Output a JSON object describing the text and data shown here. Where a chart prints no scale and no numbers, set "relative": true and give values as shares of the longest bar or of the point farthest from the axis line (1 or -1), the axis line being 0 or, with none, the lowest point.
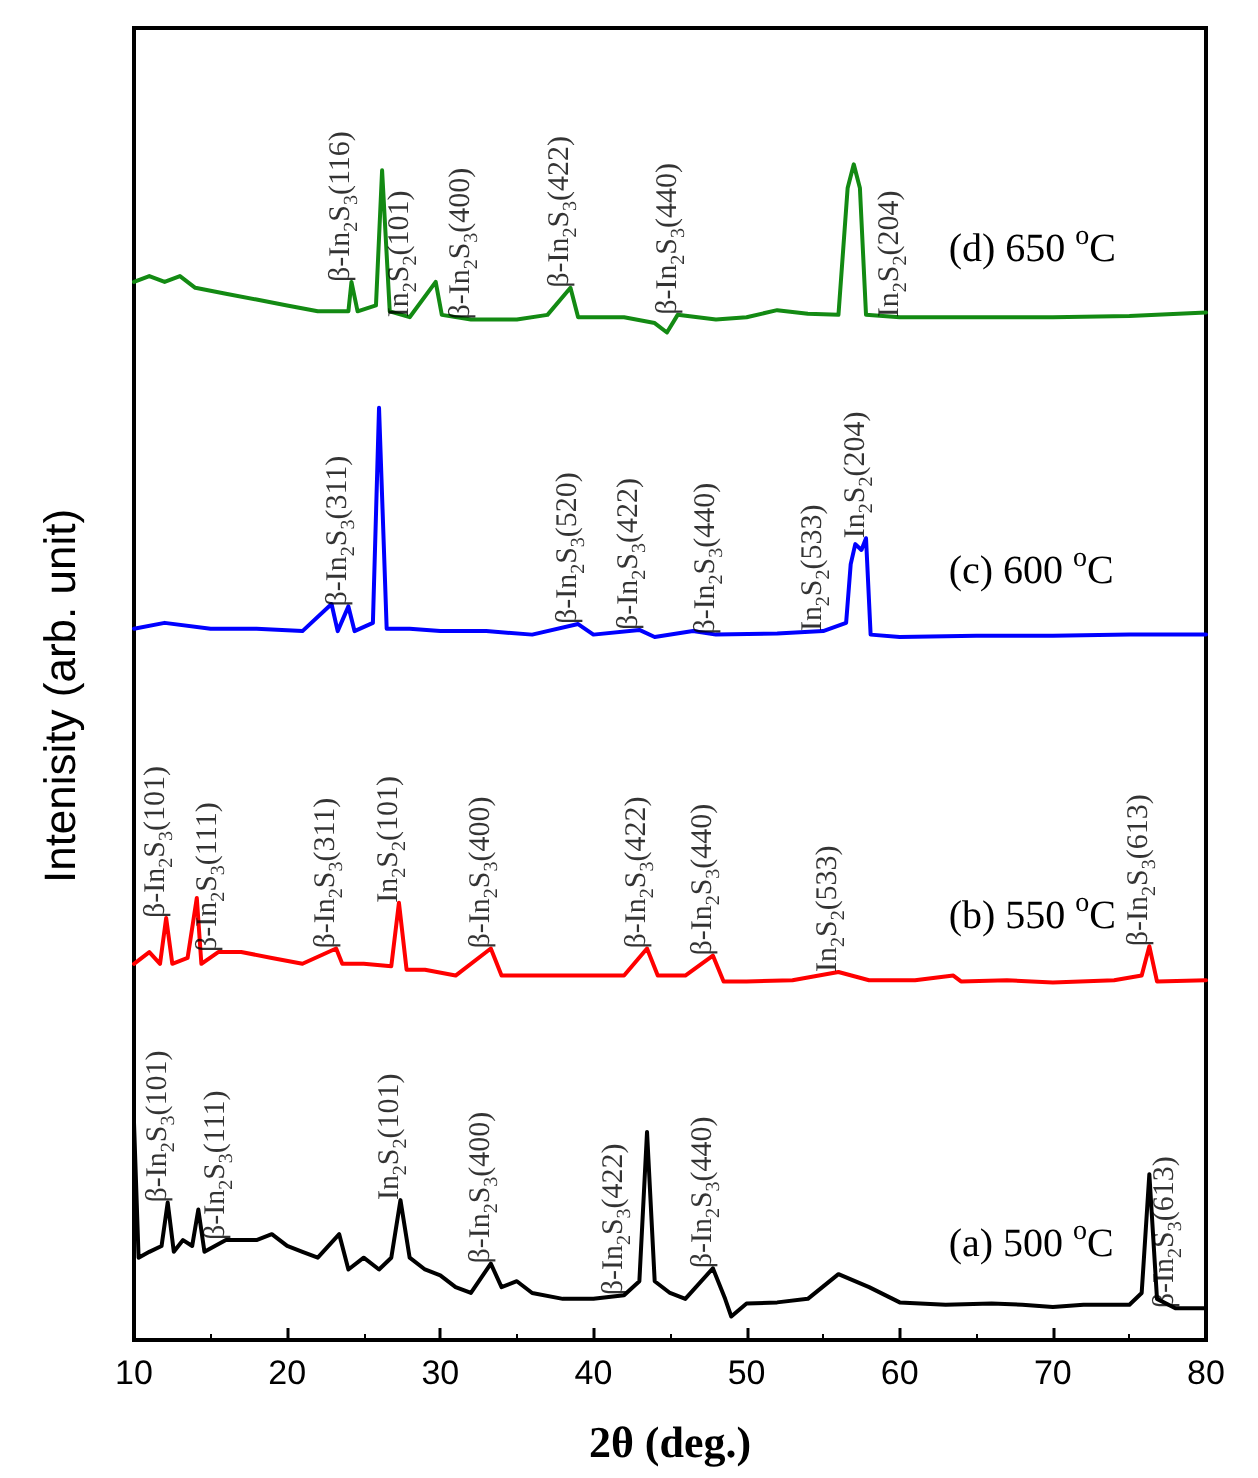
{
  "chart_data": {
    "type": "line",
    "xlabel": "2θ (deg.)",
    "ylabel": "Intenisity (arb. unit)",
    "xlim": [
      10,
      80
    ],
    "xticks": [
      10,
      20,
      30,
      40,
      50,
      60,
      70,
      80
    ],
    "relative": true,
    "marker": "none",
    "line_style": "solid",
    "series": [
      {
        "name": "(a) 500 $^{o}$C",
        "color": "#000000",
        "x": [
          10,
          10.3,
          11,
          11.8,
          12.2,
          12.6,
          13.2,
          13.8,
          14.2,
          14.6,
          16,
          18,
          19,
          20,
          21,
          22,
          23.4,
          24,
          25,
          26,
          26.8,
          27.4,
          28,
          29,
          30,
          31,
          32,
          33.3,
          34,
          35,
          36,
          38,
          40,
          42,
          43,
          43.5,
          44,
          45,
          46,
          47.8,
          48.6,
          49,
          50,
          52,
          54,
          56,
          58,
          60,
          63,
          66,
          68,
          70,
          72,
          75,
          75.8,
          76.3,
          76.8,
          78,
          80
        ],
        "values": [
          0.185,
          0.07,
          0.075,
          0.08,
          0.117,
          0.075,
          0.085,
          0.08,
          0.111,
          0.075,
          0.085,
          0.085,
          0.09,
          0.08,
          0.075,
          0.07,
          0.09,
          0.06,
          0.07,
          0.06,
          0.07,
          0.119,
          0.07,
          0.06,
          0.055,
          0.045,
          0.04,
          0.065,
          0.045,
          0.05,
          0.04,
          0.035,
          0.035,
          0.038,
          0.05,
          0.177,
          0.05,
          0.04,
          0.035,
          0.061,
          0.035,
          0.02,
          0.031,
          0.032,
          0.035,
          0.056,
          0.045,
          0.032,
          0.03,
          0.031,
          0.03,
          0.028,
          0.03,
          0.03,
          0.04,
          0.141,
          0.035,
          0.027,
          0.027
        ]
      },
      {
        "name": "(b) 550 $^{o}$C",
        "color": "#ff0000",
        "x": [
          10,
          11,
          11.7,
          12.1,
          12.5,
          13.5,
          14.1,
          14.4,
          15.5,
          17,
          19,
          21,
          23.2,
          23.6,
          25,
          26.8,
          27.3,
          27.8,
          29,
          31,
          33.3,
          34,
          36,
          40,
          42,
          43.5,
          44.2,
          46,
          47.8,
          48.5,
          50,
          53,
          56,
          58,
          61,
          63.5,
          64,
          67,
          70,
          74,
          75.8,
          76.3,
          76.8,
          80
        ],
        "values": [
          0.32,
          0.33,
          0.32,
          0.359,
          0.32,
          0.325,
          0.376,
          0.32,
          0.33,
          0.33,
          0.325,
          0.32,
          0.333,
          0.32,
          0.32,
          0.318,
          0.372,
          0.315,
          0.315,
          0.31,
          0.333,
          0.31,
          0.31,
          0.31,
          0.31,
          0.333,
          0.31,
          0.31,
          0.327,
          0.305,
          0.305,
          0.306,
          0.313,
          0.306,
          0.306,
          0.31,
          0.305,
          0.306,
          0.304,
          0.306,
          0.31,
          0.335,
          0.305,
          0.306
        ]
      },
      {
        "name": "(c) 600 $^{o}$C",
        "color": "#0000ff",
        "x": [
          10,
          12,
          15,
          18,
          21,
          22.9,
          23.3,
          24,
          24.4,
          25.6,
          26,
          26.5,
          28,
          30,
          33,
          36,
          39,
          40,
          43,
          44,
          46.5,
          48,
          52,
          55,
          56.5,
          56.8,
          57.1,
          57.5,
          57.8,
          58.1,
          60,
          65,
          70,
          75,
          80
        ],
        "values": [
          0.605,
          0.61,
          0.605,
          0.605,
          0.603,
          0.626,
          0.603,
          0.624,
          0.603,
          0.61,
          0.793,
          0.605,
          0.605,
          0.603,
          0.603,
          0.6,
          0.609,
          0.6,
          0.604,
          0.598,
          0.603,
          0.6,
          0.601,
          0.603,
          0.61,
          0.66,
          0.677,
          0.672,
          0.682,
          0.6,
          0.598,
          0.599,
          0.599,
          0.6,
          0.6
        ]
      },
      {
        "name": "(d) 650 $^{o}$C",
        "color": "#138a13",
        "x": [
          10,
          11,
          12,
          13,
          14,
          16,
          18,
          20,
          22,
          24,
          24.2,
          24.6,
          25.8,
          26.2,
          26.7,
          28,
          29.7,
          30.1,
          32,
          35,
          37,
          38.5,
          39,
          42,
          44,
          44.8,
          45.5,
          48,
          50,
          52,
          54,
          56,
          56.6,
          57,
          57.4,
          57.8,
          60,
          65,
          70,
          75,
          80
        ],
        "values": [
          0.9,
          0.905,
          0.9,
          0.905,
          0.895,
          0.89,
          0.885,
          0.88,
          0.875,
          0.875,
          0.9,
          0.875,
          0.88,
          0.995,
          0.875,
          0.87,
          0.9,
          0.872,
          0.868,
          0.868,
          0.872,
          0.895,
          0.87,
          0.87,
          0.865,
          0.857,
          0.872,
          0.868,
          0.87,
          0.876,
          0.873,
          0.872,
          0.98,
          1,
          0.98,
          0.872,
          0.87,
          0.87,
          0.87,
          0.871,
          0.874
        ]
      }
    ],
    "annotations": [
      {
        "text": "β-In$_{2}$S$_{3}$(116)",
        "x": 24.2,
        "y": 0.9
      },
      {
        "text": "In$_{2}$S$_{2}$(101)",
        "x": 28,
        "y": 0.87
      },
      {
        "text": "β-In$_{2}$S$_{3}$(400)",
        "x": 32,
        "y": 0.868
      },
      {
        "text": "β-In$_{2}$S$_{3}$(422)",
        "x": 38.5,
        "y": 0.895
      },
      {
        "text": "β-In$_{2}$S$_{3}$(440)",
        "x": 45.5,
        "y": 0.872
      },
      {
        "text": "In$_{2}$S$_{2}$(204)",
        "x": 60,
        "y": 0.87
      },
      {
        "text": "β-In$_{2}$S$_{3}$(311)",
        "x": 24,
        "y": 0.624
      },
      {
        "text": "β-In$_{2}$S$_{3}$(520)",
        "x": 39,
        "y": 0.609
      },
      {
        "text": "β-In$_{2}$S$_{3}$(422)",
        "x": 43,
        "y": 0.604
      },
      {
        "text": "β-In$_{2}$S$_{3}$(440)",
        "x": 48,
        "y": 0.6
      },
      {
        "text": "In$_{2}$S$_{2}$(533)",
        "x": 55,
        "y": 0.603
      },
      {
        "text": "In$_{2}$S$_{2}$(204)",
        "x": 57.8,
        "y": 0.682
      },
      {
        "text": "β-In$_{2}$S$_{3}$(101)",
        "x": 12.1,
        "y": 0.359
      },
      {
        "text": "β-In$_{2}$S$_{3}$(111)",
        "x": 15.5,
        "y": 0.33
      },
      {
        "text": "β-In$_{2}$S$_{3}$(311)",
        "x": 23.2,
        "y": 0.333
      },
      {
        "text": "In$_{2}$S$_{2}$(101)",
        "x": 27.3,
        "y": 0.372
      },
      {
        "text": "β-In$_{2}$S$_{3}$(400)",
        "x": 33.3,
        "y": 0.333
      },
      {
        "text": "β-In$_{2}$S$_{3}$(422)",
        "x": 43.5,
        "y": 0.333
      },
      {
        "text": "β-In$_{2}$S$_{3}$(440)",
        "x": 47.8,
        "y": 0.327
      },
      {
        "text": "In$_{2}$S$_{2}$(533)",
        "x": 56,
        "y": 0.313
      },
      {
        "text": "β-In$_{2}$S$_{3}$(613)",
        "x": 76.3,
        "y": 0.335
      },
      {
        "text": "β-In$_{2}$S$_{3}$(101)",
        "x": 12.2,
        "y": 0.117
      },
      {
        "text": "β-In$_{2}$S$_{3}$(111)",
        "x": 16,
        "y": 0.085
      },
      {
        "text": "In$_{2}$S$_{2}$(101)",
        "x": 27.4,
        "y": 0.119
      },
      {
        "text": "β-In$_{2}$S$_{3}$(400)",
        "x": 33.3,
        "y": 0.065
      },
      {
        "text": "β-In$_{2}$S$_{3}$(422)",
        "x": 42,
        "y": 0.038
      },
      {
        "text": "β-In$_{2}$S$_{3}$(440)",
        "x": 47.8,
        "y": 0.061
      },
      {
        "text": "β-In$_{2}$S$_{3}$(613)",
        "x": 78,
        "y": 0.027
      }
    ]
  }
}
